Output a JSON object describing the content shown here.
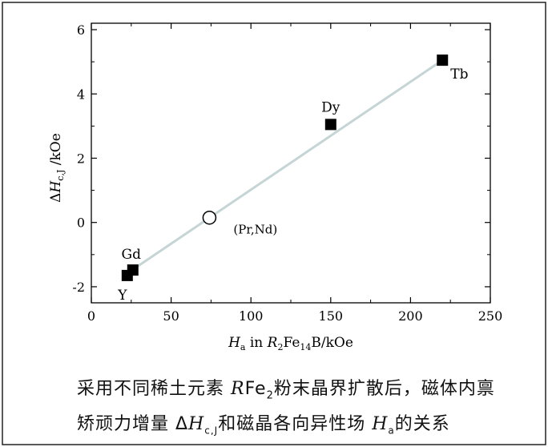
{
  "chart_data": {
    "type": "scatter",
    "xlim": [
      0,
      250
    ],
    "ylim": [
      -2.5,
      6.2
    ],
    "xticks": [
      0,
      50,
      100,
      150,
      200,
      250
    ],
    "yticks": [
      -2,
      0,
      2,
      4,
      6
    ],
    "xlabel_parts": {
      "H": "H",
      "a_sub": "a",
      "mid": " in ",
      "R": "R",
      "two_sub": "2",
      "fe": "Fe",
      "fourteen_sub": "14",
      "tail": "B/kOe"
    },
    "ylabel_parts": {
      "delta": "Δ",
      "H": "H",
      "cj_sub": "c,J",
      "tail": " /kOe"
    },
    "fit_line": {
      "x": [
        22,
        220
      ],
      "y": [
        -1.6,
        5.05
      ]
    },
    "points": [
      {
        "label": "Y",
        "x": 22.5,
        "y": -1.65,
        "marker": "filled-square"
      },
      {
        "label": "Gd",
        "x": 26,
        "y": -1.48,
        "marker": "filled-square"
      },
      {
        "label": "(Pr,Nd)",
        "x": 74,
        "y": 0.15,
        "marker": "open-circle"
      },
      {
        "label": "Dy",
        "x": 150,
        "y": 3.05,
        "marker": "filled-square"
      },
      {
        "label": "Tb",
        "x": 220,
        "y": 5.05,
        "marker": "filled-square"
      }
    ],
    "colors": {
      "line": "#c5d5d5",
      "marker": "#000000",
      "axis": "#000000"
    }
  },
  "caption": {
    "line1_a": "采用不同稀土元素 ",
    "line1_R": "R",
    "line1_fe": "Fe",
    "line1_sub": "2",
    "line1_b": "粉末晶界扩散后，磁体内禀",
    "line2_a": "矫顽力增量 Δ",
    "line2_H": "H",
    "line2_sub": "c,J",
    "line2_b": "和磁晶各向异性场 ",
    "line2_H2": "H",
    "line2_sub2": "a",
    "line2_c": "的关系"
  }
}
